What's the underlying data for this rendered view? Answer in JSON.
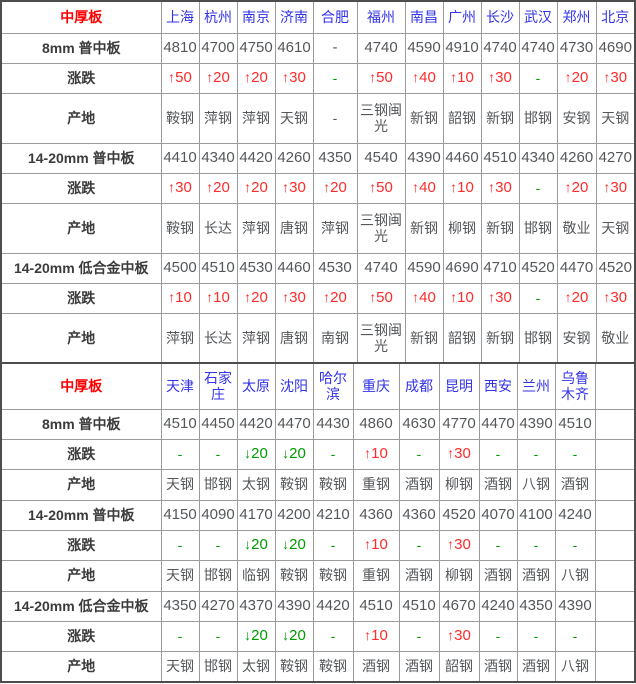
{
  "colors": {
    "section_title": "#ff0000",
    "city_header": "#3333e8",
    "row_label": "#3b3b3b",
    "value_gray": "#55585b",
    "up_red": "#ff2b2b",
    "down_green": "#009b00",
    "border_gray": "#9b9b9b"
  },
  "chart_data": [
    {
      "type": "table",
      "header": {
        "label": "中厚板",
        "cities": [
          "上海",
          "杭州",
          "南京",
          "济南",
          "合肥",
          "福州",
          "南昌",
          "广州",
          "长沙",
          "武汉",
          "郑州",
          "北京"
        ]
      },
      "rows": [
        {
          "label": "8mm 普中板",
          "row_type": "price",
          "values": [
            "4810",
            "4700",
            "4750",
            "4610",
            "-",
            "4740",
            "4590",
            "4910",
            "4740",
            "4740",
            "4730",
            "4690"
          ]
        },
        {
          "label": "涨跌",
          "row_type": "change",
          "values": [
            "↑50",
            "↑20",
            "↑20",
            "↑30",
            "-",
            "↑50",
            "↑40",
            "↑10",
            "↑30",
            "-",
            "↑20",
            "↑30"
          ]
        },
        {
          "label": "产地",
          "row_type": "origin",
          "values": [
            "鞍钢",
            "萍钢",
            "萍钢",
            "天钢",
            "-",
            "三钢闽光",
            "新钢",
            "韶钢",
            "新钢",
            "邯钢",
            "安钢",
            "天钢"
          ]
        },
        {
          "label": "14-20mm 普中板",
          "row_type": "price",
          "values": [
            "4410",
            "4340",
            "4420",
            "4260",
            "4350",
            "4540",
            "4390",
            "4460",
            "4510",
            "4340",
            "4260",
            "4270"
          ]
        },
        {
          "label": "涨跌",
          "row_type": "change",
          "values": [
            "↑30",
            "↑20",
            "↑20",
            "↑30",
            "↑20",
            "↑50",
            "↑40",
            "↑10",
            "↑30",
            "-",
            "↑20",
            "↑30"
          ]
        },
        {
          "label": "产地",
          "row_type": "origin",
          "values": [
            "鞍钢",
            "长达",
            "萍钢",
            "唐钢",
            "萍钢",
            "三钢闽光",
            "新钢",
            "柳钢",
            "新钢",
            "邯钢",
            "敬业",
            "天钢"
          ]
        },
        {
          "label": "14-20mm 低合金中板",
          "row_type": "price",
          "values": [
            "4500",
            "4510",
            "4530",
            "4460",
            "4530",
            "4740",
            "4590",
            "4690",
            "4710",
            "4520",
            "4470",
            "4520"
          ]
        },
        {
          "label": "涨跌",
          "row_type": "change",
          "values": [
            "↑10",
            "↑10",
            "↑20",
            "↑30",
            "↑20",
            "↑50",
            "↑40",
            "↑10",
            "↑30",
            "-",
            "↑20",
            "↑30"
          ]
        },
        {
          "label": "产地",
          "row_type": "origin",
          "values": [
            "萍钢",
            "长达",
            "萍钢",
            "唐钢",
            "南钢",
            "三钢闽光",
            "新钢",
            "韶钢",
            "新钢",
            "邯钢",
            "安钢",
            "敬业"
          ]
        }
      ]
    },
    {
      "type": "table",
      "header": {
        "label": "中厚板",
        "cities": [
          "天津",
          "石家庄",
          "太原",
          "沈阳",
          "哈尔滨",
          "重庆",
          "成都",
          "昆明",
          "西安",
          "兰州",
          "乌鲁木齐",
          ""
        ]
      },
      "rows": [
        {
          "label": "8mm 普中板",
          "row_type": "price",
          "values": [
            "4510",
            "4450",
            "4420",
            "4470",
            "4430",
            "4860",
            "4630",
            "4770",
            "4470",
            "4390",
            "4510",
            ""
          ]
        },
        {
          "label": "涨跌",
          "row_type": "change",
          "values": [
            "-",
            "-",
            "↓20",
            "↓20",
            "-",
            "↑10",
            "-",
            "↑30",
            "-",
            "-",
            "-",
            ""
          ]
        },
        {
          "label": "产地",
          "row_type": "origin",
          "values": [
            "天钢",
            "邯钢",
            "太钢",
            "鞍钢",
            "鞍钢",
            "重钢",
            "酒钢",
            "柳钢",
            "酒钢",
            "八钢",
            "酒钢",
            ""
          ]
        },
        {
          "label": "14-20mm 普中板",
          "row_type": "price",
          "values": [
            "4150",
            "4090",
            "4170",
            "4200",
            "4210",
            "4360",
            "4360",
            "4520",
            "4070",
            "4100",
            "4240",
            ""
          ]
        },
        {
          "label": "涨跌",
          "row_type": "change",
          "values": [
            "-",
            "-",
            "↓20",
            "↓20",
            "-",
            "↑10",
            "-",
            "↑30",
            "-",
            "-",
            "-",
            ""
          ]
        },
        {
          "label": "产地",
          "row_type": "origin",
          "values": [
            "天钢",
            "邯钢",
            "临钢",
            "鞍钢",
            "鞍钢",
            "重钢",
            "酒钢",
            "柳钢",
            "酒钢",
            "酒钢",
            "八钢",
            ""
          ]
        },
        {
          "label": "14-20mm 低合金中板",
          "row_type": "price",
          "values": [
            "4350",
            "4270",
            "4370",
            "4390",
            "4420",
            "4510",
            "4510",
            "4670",
            "4240",
            "4350",
            "4390",
            ""
          ]
        },
        {
          "label": "涨跌",
          "row_type": "change",
          "values": [
            "-",
            "-",
            "↓20",
            "↓20",
            "-",
            "↑10",
            "-",
            "↑30",
            "-",
            "-",
            "-",
            ""
          ]
        },
        {
          "label": "产地",
          "row_type": "origin",
          "values": [
            "天钢",
            "邯钢",
            "太钢",
            "鞍钢",
            "鞍钢",
            "酒钢",
            "酒钢",
            "韶钢",
            "酒钢",
            "酒钢",
            "八钢",
            ""
          ]
        }
      ]
    }
  ]
}
